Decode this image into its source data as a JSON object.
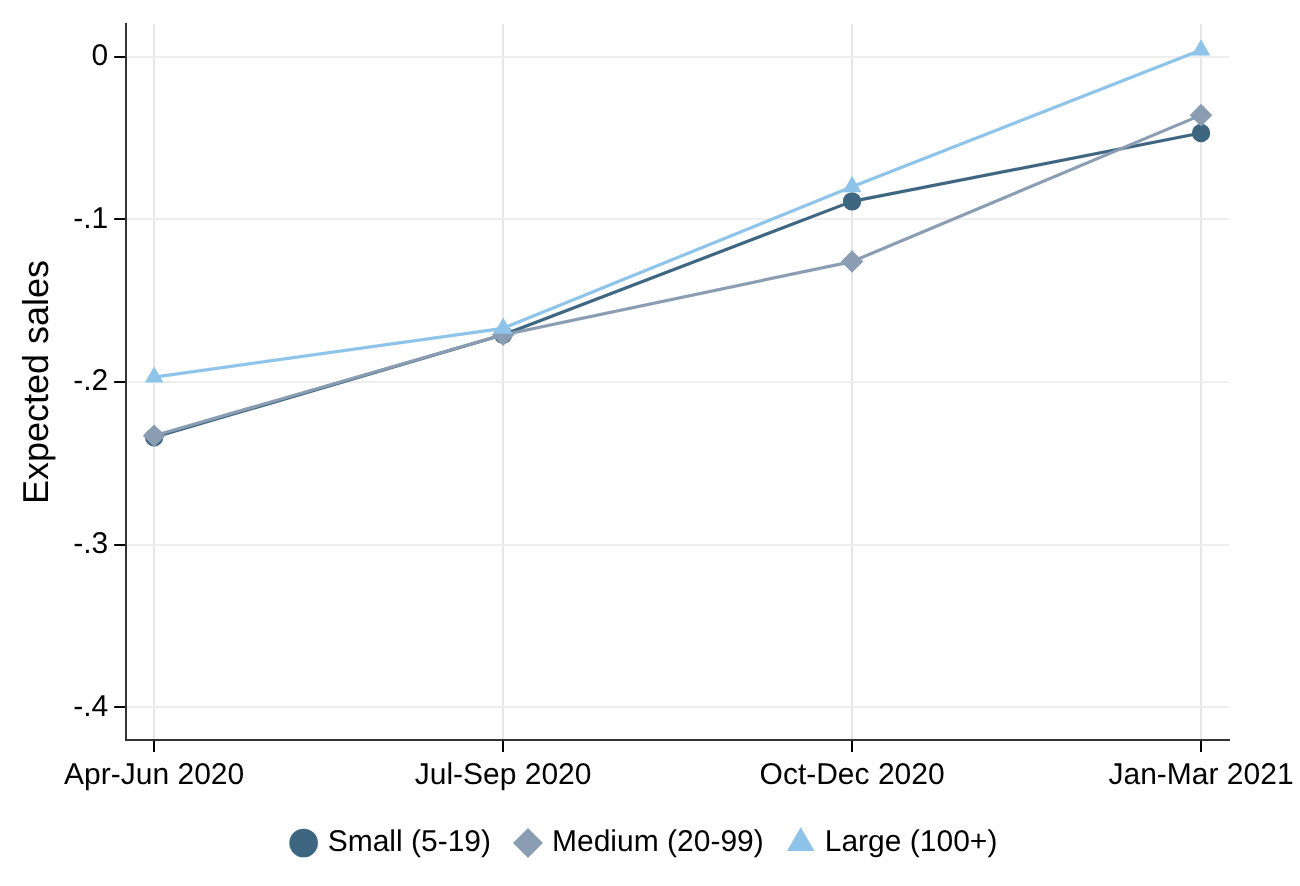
{
  "chart_data": {
    "type": "line",
    "ylabel": "Expected sales",
    "categories": [
      "Apr-Jun 2020",
      "Jul-Sep 2020",
      "Oct-Dec 2020",
      "Jan-Mar 2021"
    ],
    "series": [
      {
        "name": "Small (5-19)",
        "color": "#3e6680",
        "marker": "circle",
        "values": [
          -0.234,
          -0.171,
          -0.089,
          -0.047
        ]
      },
      {
        "name": "Medium (20-99)",
        "color": "#8a9db3",
        "marker": "diamond",
        "values": [
          -0.233,
          -0.171,
          -0.126,
          -0.036
        ]
      },
      {
        "name": "Large (100+)",
        "color": "#8ec4ea",
        "marker": "triangle",
        "values": [
          -0.197,
          -0.167,
          -0.08,
          0.004
        ]
      }
    ],
    "ylim": [
      -0.42,
      0.02
    ],
    "yticks": [
      {
        "value": -0.4,
        "label": "-.4"
      },
      {
        "value": -0.3,
        "label": "-.3"
      },
      {
        "value": -0.2,
        "label": "-.2"
      },
      {
        "value": -0.1,
        "label": "-.1"
      },
      0
    ],
    "grid": true,
    "legend": "bottom",
    "line_style": "solid"
  }
}
